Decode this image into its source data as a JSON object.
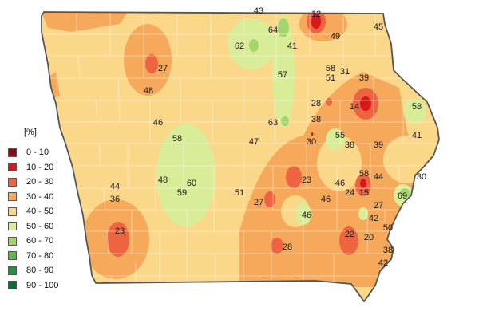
{
  "legend": {
    "unit": "[%]",
    "classes": [
      {
        "label": "0 - 10",
        "color": "#8b0a1a"
      },
      {
        "label": "10 - 20",
        "color": "#d7191c"
      },
      {
        "label": "20 - 30",
        "color": "#ee6440"
      },
      {
        "label": "30 - 40",
        "color": "#f6a95a"
      },
      {
        "label": "40 - 50",
        "color": "#fbd889"
      },
      {
        "label": "50 - 60",
        "color": "#d9ec97"
      },
      {
        "label": "60 - 70",
        "color": "#a3d46d"
      },
      {
        "label": "70 - 80",
        "color": "#5eb552"
      },
      {
        "label": "80 - 90",
        "color": "#1e9340"
      },
      {
        "label": "90 - 100",
        "color": "#0c6b34"
      }
    ]
  },
  "station_values": [
    "43",
    "12",
    "45",
    "64",
    "49",
    "62",
    "41",
    "27",
    "58",
    "31",
    "57",
    "51",
    "39",
    "48",
    "28",
    "14",
    "58",
    "46",
    "63",
    "38",
    "58",
    "55",
    "47",
    "30",
    "38",
    "39",
    "41",
    "44",
    "58",
    "44",
    "30",
    "48",
    "60",
    "23",
    "46",
    "15",
    "69",
    "59",
    "36",
    "51",
    "27",
    "46",
    "24",
    "27",
    "46",
    "42",
    "50",
    "23",
    "22",
    "20",
    "28",
    "38",
    "42"
  ]
}
